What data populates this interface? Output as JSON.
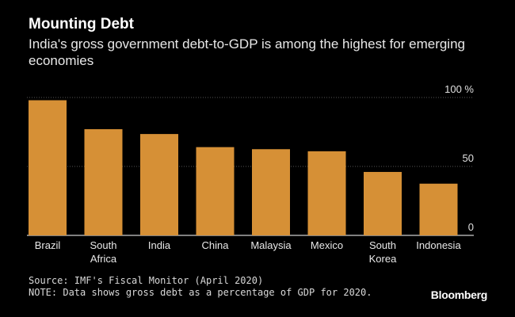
{
  "header": {
    "title": "Mounting Debt",
    "subtitle": "India's gross government debt-to-GDP is among the highest for emerging economies"
  },
  "footer": {
    "source": "Source: IMF's Fiscal Monitor (April 2020)",
    "note": "NOTE: Data shows gross debt as a percentage of GDP for 2020.",
    "logo": "Bloomberg"
  },
  "colors": {
    "bar": "#d69036",
    "background": "#000000",
    "grid": "#555555",
    "text": "#ffffff"
  },
  "chart_data": {
    "type": "bar",
    "title": "Mounting Debt",
    "categories": [
      "Brazil",
      "South Africa",
      "India",
      "China",
      "Malaysia",
      "Mexico",
      "South Korea",
      "Indonesia"
    ],
    "category_lines": [
      [
        "Brazil"
      ],
      [
        "South",
        "Africa"
      ],
      [
        "India"
      ],
      [
        "China"
      ],
      [
        "Malaysia"
      ],
      [
        "Mexico"
      ],
      [
        "South",
        "Korea"
      ],
      [
        "Indonesia"
      ]
    ],
    "values": [
      98,
      77,
      73.5,
      64,
      62.5,
      61,
      46,
      37.5
    ],
    "ylim": [
      0,
      100
    ],
    "yticks": [
      0,
      50,
      100
    ],
    "ytick_labels": [
      "0",
      "50",
      "100 %"
    ],
    "xlabel": "",
    "ylabel": "",
    "grid": true,
    "y_axis_side": "right"
  }
}
